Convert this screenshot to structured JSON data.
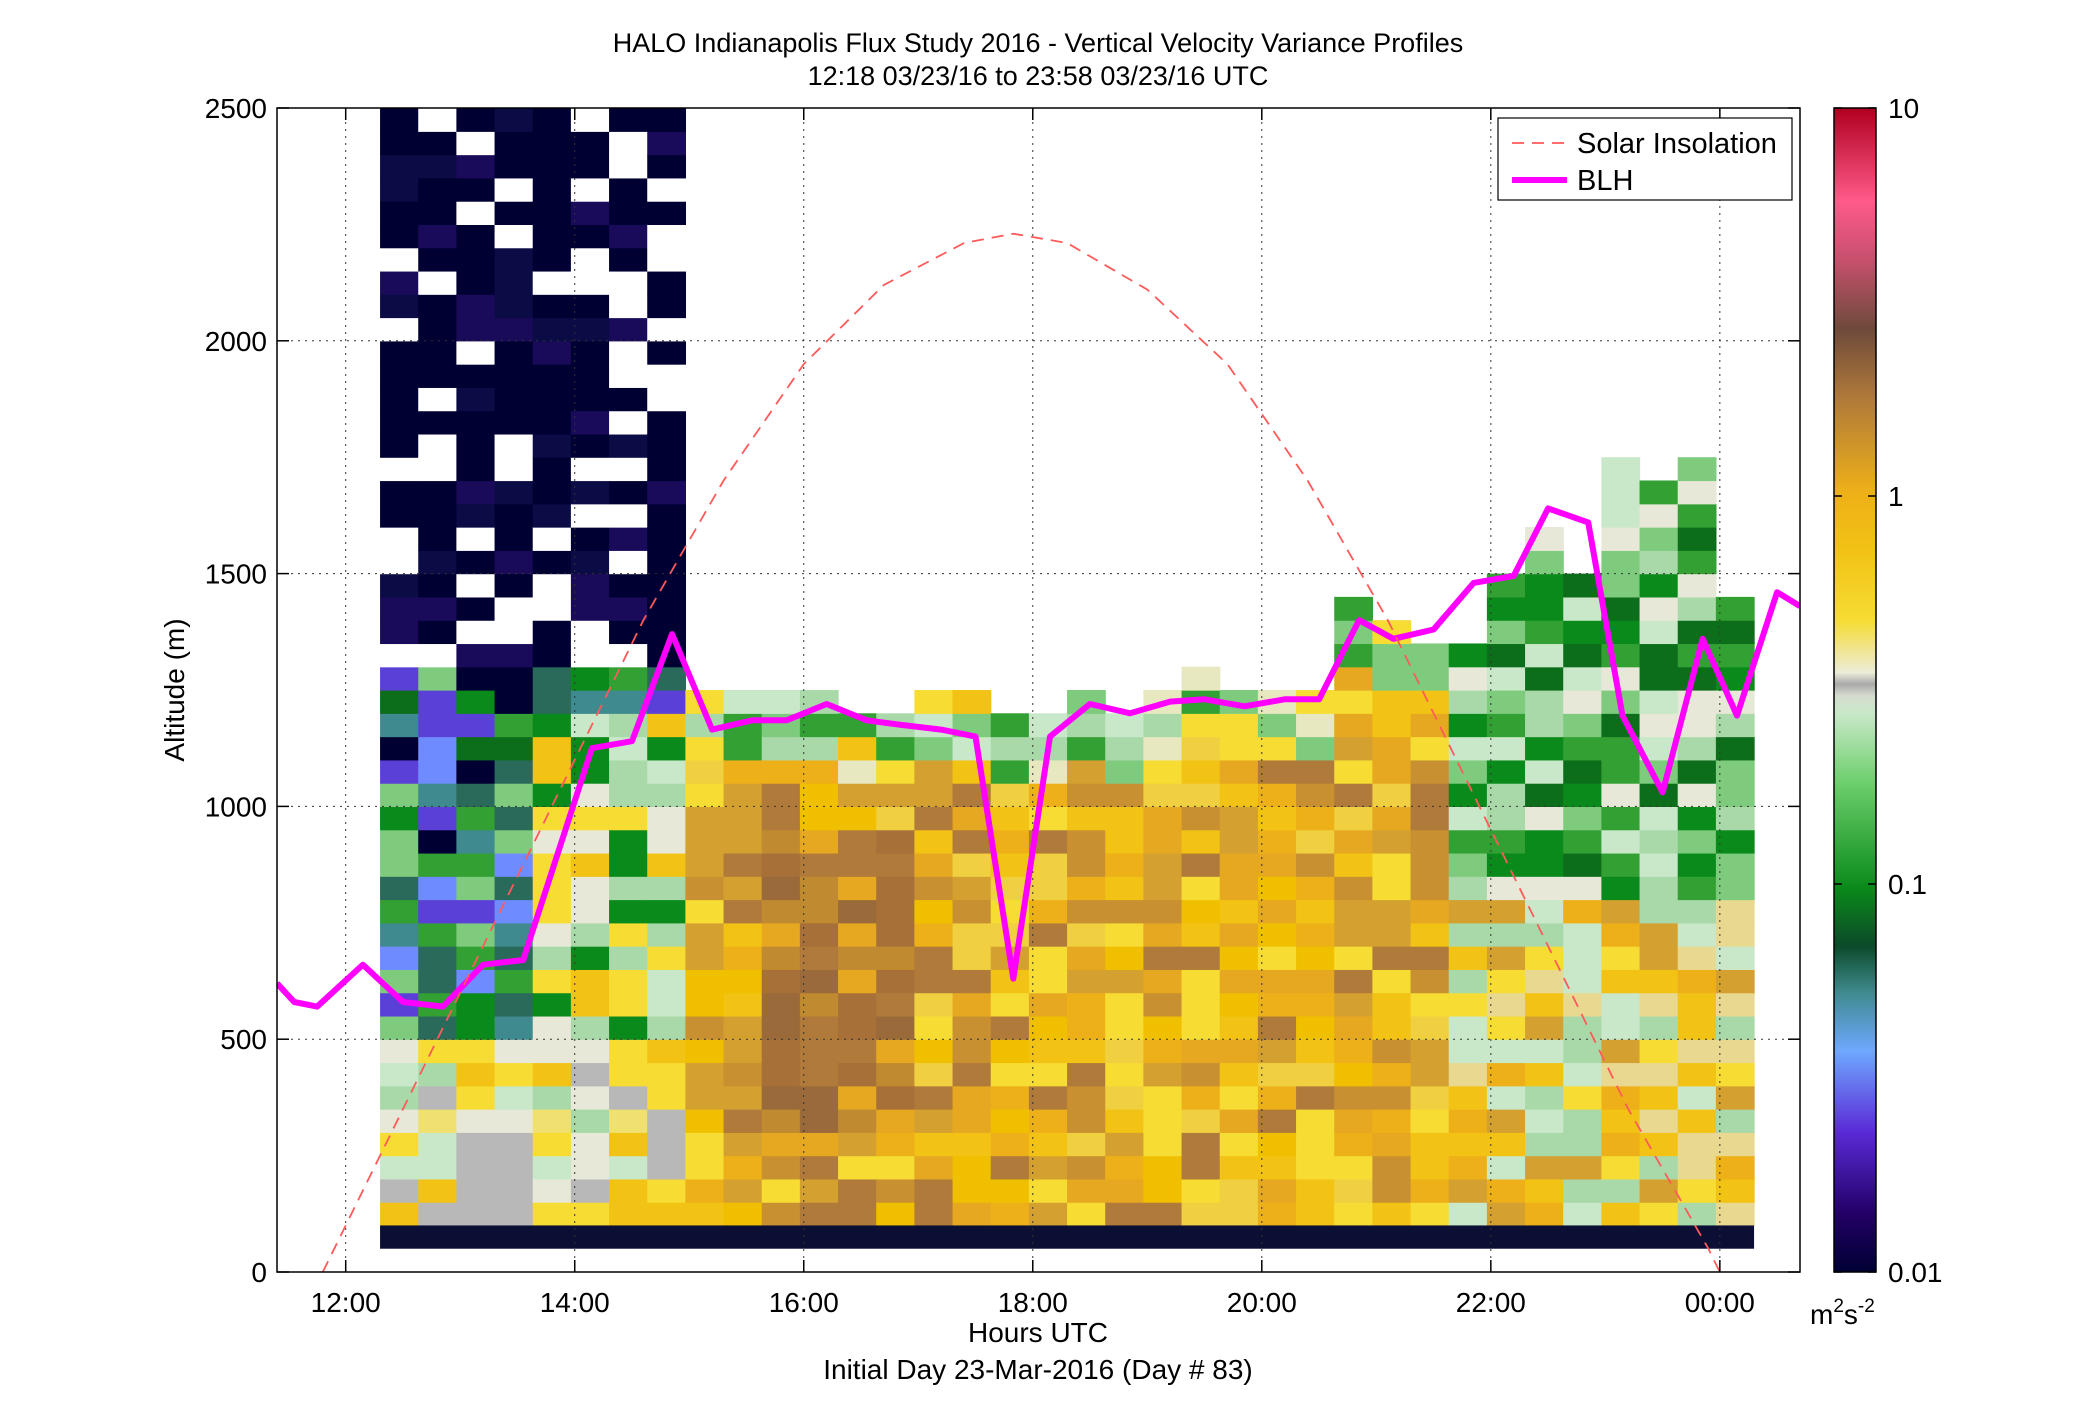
{
  "chart_data": {
    "type": "heatmap",
    "title": "HALO Indianapolis Flux Study 2016 - Vertical Velocity Variance Profiles",
    "subtitle": "12:18 03/23/16 to 23:58 03/23/16  UTC",
    "xlabel": "Hours UTC",
    "xlabel2": "Initial Day 23-Mar-2016 (Day # 83)",
    "ylabel": "Altitude (m)",
    "xlim": [
      11.4,
      24.7
    ],
    "ylim": [
      0,
      2500
    ],
    "x_ticks": [
      {
        "value": 12,
        "label": "12:00"
      },
      {
        "value": 14,
        "label": "14:00"
      },
      {
        "value": 16,
        "label": "16:00"
      },
      {
        "value": 18,
        "label": "18:00"
      },
      {
        "value": 20,
        "label": "20:00"
      },
      {
        "value": 22,
        "label": "22:00"
      },
      {
        "value": 24,
        "label": "00:00"
      }
    ],
    "y_ticks": [
      {
        "value": 0,
        "label": "0"
      },
      {
        "value": 500,
        "label": "500"
      },
      {
        "value": 1000,
        "label": "1000"
      },
      {
        "value": 1500,
        "label": "1500"
      },
      {
        "value": 2000,
        "label": "2000"
      },
      {
        "value": 2500,
        "label": "2500"
      }
    ],
    "grid": true,
    "legend_position": "top-right",
    "legend": [
      {
        "label": "Solar Insolation",
        "style": "dashed",
        "color": "#ff5a5a"
      },
      {
        "label": "BLH",
        "style": "solid",
        "color": "#ff00ff"
      }
    ],
    "colorbar": {
      "scale": "log",
      "range": [
        0.01,
        10
      ],
      "tick_labels": [
        "10",
        "1",
        "0.1",
        "0.01"
      ],
      "tick_values": [
        10,
        1,
        0.1,
        0.01
      ],
      "unit_base": "m",
      "unit_exp1": "2",
      "unit_mid": "s",
      "unit_exp2": "-2"
    },
    "heatmap": {
      "cell_height_m": 50,
      "columns_start_hour": 12.3,
      "column_width_h": 0.3333,
      "first_row_bottom_m": 100,
      "columns": [
        {
          "top": 2500,
          "mix": "night"
        },
        {
          "top": 2500,
          "mix": "night"
        },
        {
          "top": 2500,
          "mix": "night"
        },
        {
          "top": 2500,
          "mix": "night"
        },
        {
          "top": 2500,
          "mix": "night"
        },
        {
          "top": 2500,
          "mix": "night"
        },
        {
          "top": 2500,
          "mix": "night"
        },
        {
          "top": 2500,
          "mix": "night"
        },
        {
          "top": 1250,
          "mix": "day"
        },
        {
          "top": 1250,
          "mix": "day"
        },
        {
          "top": 1250,
          "mix": "day"
        },
        {
          "top": 1250,
          "mix": "day"
        },
        {
          "top": 1200,
          "mix": "day"
        },
        {
          "top": 1200,
          "mix": "day"
        },
        {
          "top": 1250,
          "mix": "day"
        },
        {
          "top": 1250,
          "mix": "day"
        },
        {
          "top": 1200,
          "mix": "day"
        },
        {
          "top": 1200,
          "mix": "day"
        },
        {
          "top": 1250,
          "mix": "day"
        },
        {
          "top": 1200,
          "mix": "day"
        },
        {
          "top": 1250,
          "mix": "day"
        },
        {
          "top": 1300,
          "mix": "day"
        },
        {
          "top": 1250,
          "mix": "day"
        },
        {
          "top": 1250,
          "mix": "day"
        },
        {
          "top": 1250,
          "mix": "day"
        },
        {
          "top": 1450,
          "mix": "day"
        },
        {
          "top": 1400,
          "mix": "day"
        },
        {
          "top": 1350,
          "mix": "day"
        },
        {
          "top": 1350,
          "mix": "late"
        },
        {
          "top": 1500,
          "mix": "late"
        },
        {
          "top": 1600,
          "mix": "late"
        },
        {
          "top": 1500,
          "mix": "late"
        },
        {
          "top": 1750,
          "mix": "late"
        },
        {
          "top": 1700,
          "mix": "late"
        },
        {
          "top": 1750,
          "mix": "late"
        },
        {
          "top": 1450,
          "mix": "late"
        }
      ]
    },
    "series": [
      {
        "name": "BLH",
        "x": [
          11.4,
          11.55,
          11.75,
          12.15,
          12.5,
          12.85,
          13.2,
          13.55,
          14.15,
          14.5,
          14.85,
          15.2,
          15.55,
          15.85,
          16.2,
          16.55,
          16.85,
          17.2,
          17.5,
          17.83,
          18.15,
          18.5,
          18.85,
          19.2,
          19.5,
          19.85,
          20.2,
          20.5,
          20.85,
          21.15,
          21.5,
          21.85,
          22.2,
          22.5,
          22.85,
          23.15,
          23.5,
          23.85,
          24.15,
          24.5,
          24.7
        ],
        "y": [
          620,
          580,
          570,
          660,
          580,
          570,
          660,
          670,
          1125,
          1140,
          1370,
          1165,
          1185,
          1185,
          1220,
          1185,
          1175,
          1165,
          1150,
          630,
          1150,
          1220,
          1200,
          1225,
          1230,
          1215,
          1230,
          1230,
          1400,
          1360,
          1380,
          1480,
          1495,
          1640,
          1610,
          1195,
          1030,
          1360,
          1195,
          1460,
          1430
        ]
      },
      {
        "name": "Solar Insolation",
        "x": [
          11.8,
          12.5,
          13.2,
          13.9,
          14.6,
          15.3,
          16.0,
          16.7,
          17.4,
          17.83,
          18.3,
          19.0,
          19.7,
          20.4,
          21.1,
          21.8,
          22.5,
          23.2,
          23.9,
          24.0
        ],
        "y": [
          0,
          350,
          700,
          1050,
          1400,
          1700,
          1950,
          2120,
          2210,
          2230,
          2210,
          2110,
          1950,
          1700,
          1400,
          1050,
          700,
          350,
          50,
          0
        ]
      }
    ]
  }
}
